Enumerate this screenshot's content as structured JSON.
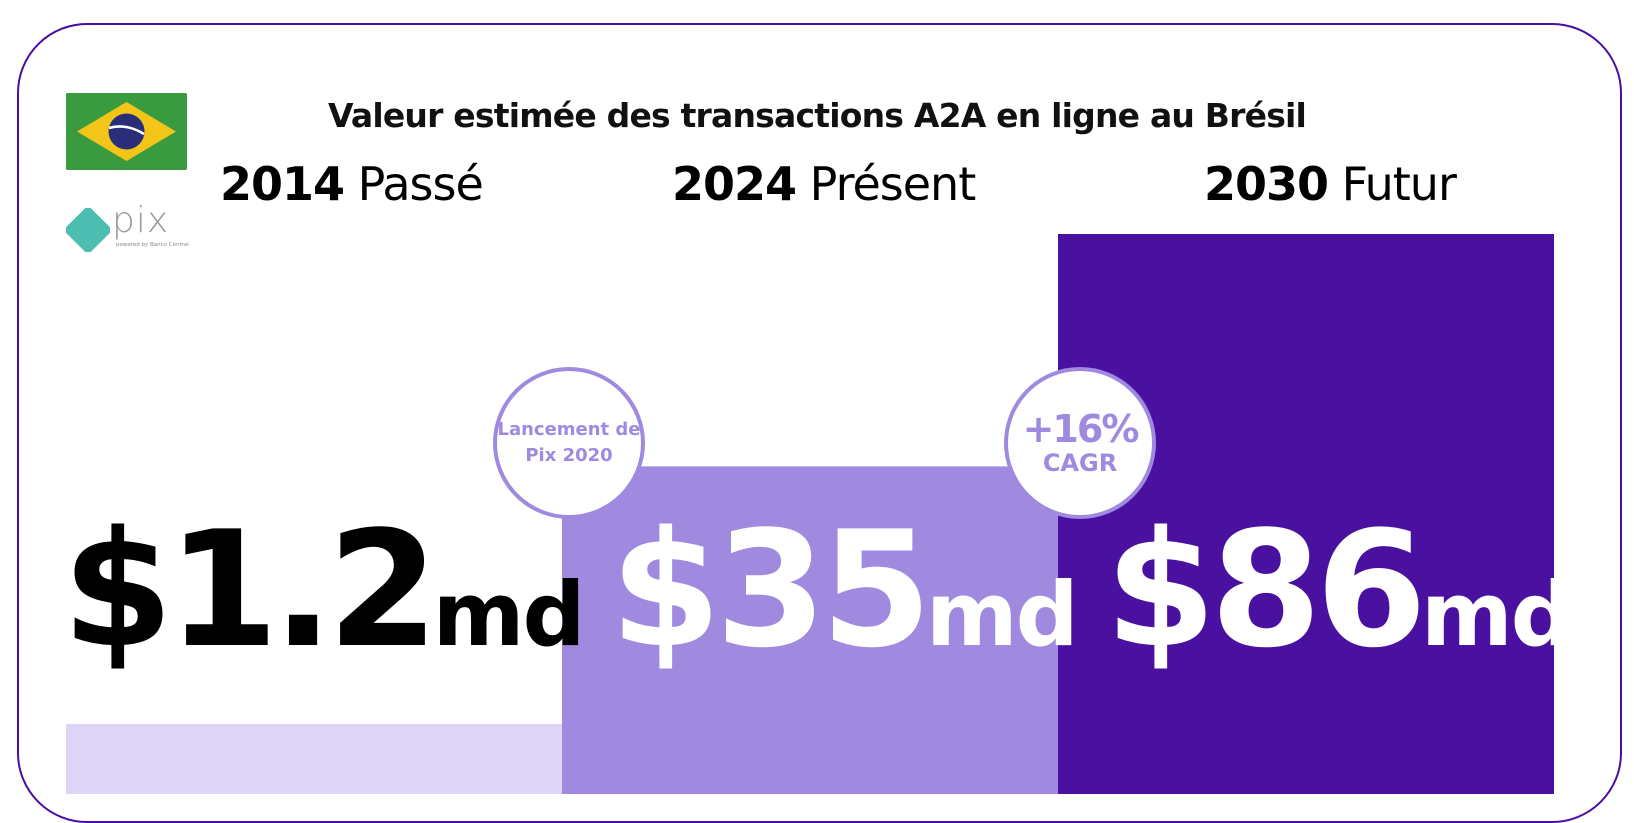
{
  "title": "Valeur estimée des transactions A2A en ligne au Brésil",
  "logos": {
    "flag_icon": "brazil-flag-icon",
    "pix_icon": "pix-logo-icon",
    "pix_word": "pix",
    "pix_tagline": "powered by Banco Central"
  },
  "periods": [
    {
      "year": "2014",
      "label": "Passé"
    },
    {
      "year": "2024",
      "label": "Présent"
    },
    {
      "year": "2030",
      "label": "Futur"
    }
  ],
  "badges": {
    "launch_line1": "Lancement de",
    "launch_line2": "Pix 2020",
    "growth_pct": "+16%",
    "growth_label": "CAGR"
  },
  "bars_display": [
    {
      "value": "$1.2",
      "unit": "md"
    },
    {
      "value": "$35",
      "unit": "md"
    },
    {
      "value": "$86",
      "unit": "md"
    }
  ],
  "colors": {
    "frame": "#4a0fa0",
    "bar_2014": "#ddd4f8",
    "bar_2024": "#a08ae0",
    "bar_2030": "#4a11a1",
    "text_dark": "#000000",
    "text_light": "#ffffff"
  },
  "chart_data": {
    "type": "bar",
    "title": "Valeur estimée des transactions A2A en ligne au Brésil",
    "categories": [
      "2014",
      "2024",
      "2030"
    ],
    "values": [
      1.2,
      35,
      86
    ],
    "unit": "md",
    "xlabel": "",
    "ylabel": ""
  }
}
